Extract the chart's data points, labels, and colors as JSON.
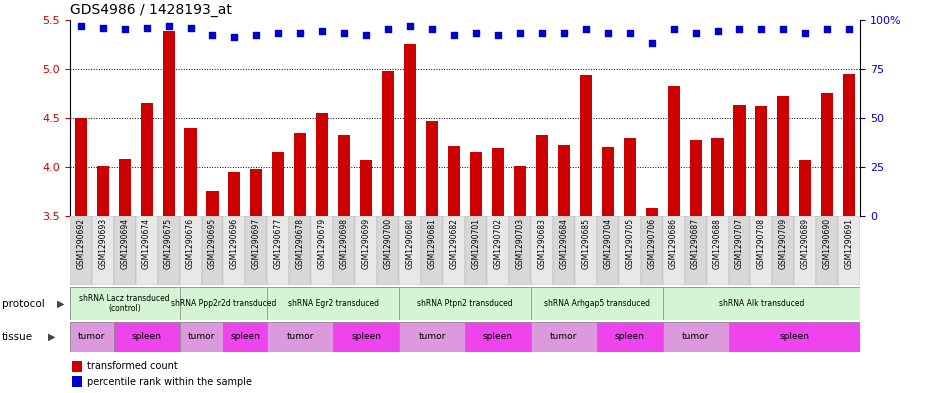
{
  "title": "GDS4986 / 1428193_at",
  "samples": [
    "GSM1290692",
    "GSM1290693",
    "GSM1290694",
    "GSM1290674",
    "GSM1290675",
    "GSM1290676",
    "GSM1290695",
    "GSM1290696",
    "GSM1290697",
    "GSM1290677",
    "GSM1290678",
    "GSM1290679",
    "GSM1290698",
    "GSM1290699",
    "GSM1290700",
    "GSM1290680",
    "GSM1290681",
    "GSM1290682",
    "GSM1290701",
    "GSM1290702",
    "GSM1290703",
    "GSM1290683",
    "GSM1290684",
    "GSM1290685",
    "GSM1290704",
    "GSM1290705",
    "GSM1290706",
    "GSM1290686",
    "GSM1290687",
    "GSM1290688",
    "GSM1290707",
    "GSM1290708",
    "GSM1290709",
    "GSM1290689",
    "GSM1290690",
    "GSM1290691"
  ],
  "bar_values": [
    4.5,
    4.01,
    4.08,
    4.65,
    5.38,
    4.4,
    3.76,
    3.95,
    3.98,
    4.15,
    4.35,
    4.55,
    4.33,
    4.07,
    4.98,
    5.25,
    4.47,
    4.21,
    4.15,
    4.19,
    4.01,
    4.33,
    4.22,
    4.94,
    4.2,
    4.3,
    3.58,
    4.82,
    4.28,
    4.3,
    4.63,
    4.62,
    4.72,
    4.07,
    4.75,
    4.95
  ],
  "percentile_values": [
    97,
    96,
    95,
    96,
    97,
    96,
    92,
    91,
    92,
    93,
    93,
    94,
    93,
    92,
    95,
    97,
    95,
    92,
    93,
    92,
    93,
    93,
    93,
    95,
    93,
    93,
    88,
    95,
    93,
    94,
    95,
    95,
    95,
    93,
    95,
    95
  ],
  "protocols": [
    {
      "label": "shRNA Lacz transduced\n(control)",
      "start": 0,
      "end": 5,
      "color": "#d4f5d4"
    },
    {
      "label": "shRNA Ppp2r2d transduced",
      "start": 5,
      "end": 9,
      "color": "#d4f5d4"
    },
    {
      "label": "shRNA Egr2 transduced",
      "start": 9,
      "end": 15,
      "color": "#d4f5d4"
    },
    {
      "label": "shRNA Ptpn2 transduced",
      "start": 15,
      "end": 21,
      "color": "#d4f5d4"
    },
    {
      "label": "shRNA Arhgap5 transduced",
      "start": 21,
      "end": 27,
      "color": "#d4f5d4"
    },
    {
      "label": "shRNA Alk transduced",
      "start": 27,
      "end": 36,
      "color": "#d4f5d4"
    }
  ],
  "tissues": [
    {
      "label": "tumor",
      "start": 0,
      "end": 2,
      "color": "#dd99dd"
    },
    {
      "label": "spleen",
      "start": 2,
      "end": 5,
      "color": "#ee44ee"
    },
    {
      "label": "tumor",
      "start": 5,
      "end": 7,
      "color": "#dd99dd"
    },
    {
      "label": "spleen",
      "start": 7,
      "end": 9,
      "color": "#ee44ee"
    },
    {
      "label": "tumor",
      "start": 9,
      "end": 12,
      "color": "#dd99dd"
    },
    {
      "label": "spleen",
      "start": 12,
      "end": 15,
      "color": "#ee44ee"
    },
    {
      "label": "tumor",
      "start": 15,
      "end": 18,
      "color": "#dd99dd"
    },
    {
      "label": "spleen",
      "start": 18,
      "end": 21,
      "color": "#ee44ee"
    },
    {
      "label": "tumor",
      "start": 21,
      "end": 24,
      "color": "#dd99dd"
    },
    {
      "label": "spleen",
      "start": 24,
      "end": 27,
      "color": "#ee44ee"
    },
    {
      "label": "tumor",
      "start": 27,
      "end": 30,
      "color": "#dd99dd"
    },
    {
      "label": "spleen",
      "start": 30,
      "end": 36,
      "color": "#ee44ee"
    }
  ],
  "ylim": [
    3.5,
    5.5
  ],
  "yticks": [
    3.5,
    4.0,
    4.5,
    5.0,
    5.5
  ],
  "right_yticks": [
    0,
    25,
    50,
    75,
    100
  ],
  "bar_color": "#cc0000",
  "dot_color": "#0000cc",
  "background_color": "#ffffff",
  "grid_color": "#000000",
  "label_color_left": "#cc0000",
  "label_color_right": "#0000cc",
  "tick_bg_colors": [
    "#d8d8d8",
    "#e8e8e8"
  ]
}
